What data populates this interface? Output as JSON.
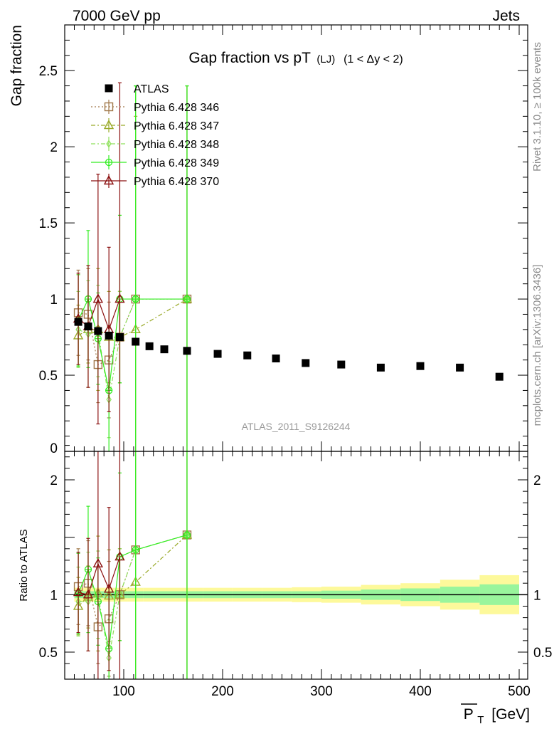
{
  "header": {
    "left": "7000 GeV pp",
    "right": "Jets"
  },
  "side_text": {
    "rivet": "Rivet 3.1.10, ≥ 100k events",
    "mcplots": "mcplots.cern.ch [arXiv:1306.3436]"
  },
  "watermark": "ATLAS_2011_S9126244",
  "colors": {
    "atlas": "#000000",
    "p346": "#a0784a",
    "p347": "#9aaa2a",
    "p348": "#8ee05a",
    "p349": "#33ee22",
    "p370": "#8b1010",
    "band_inner": "#99f59c",
    "band_outer": "#fdf99b"
  },
  "chart_data": [
    {
      "type": "scatter",
      "title": "Gap fraction vs pT",
      "title_sub": "(LJ)",
      "title_cut": "(1 < Δy < 2)",
      "ylabel": "Gap fraction",
      "xlim": [
        40,
        510
      ],
      "ylim": [
        0,
        2.8
      ],
      "yticks": [
        "0",
        "0.5",
        "1",
        "1.5",
        "2",
        "2.5"
      ],
      "legend_position": "top-left",
      "series": [
        {
          "name": "ATLAS",
          "key": "atlas",
          "marker": "square-filled",
          "x": [
            54,
            64,
            74,
            85,
            96,
            112,
            126,
            141,
            164,
            195,
            225,
            254,
            284,
            320,
            360,
            400,
            440,
            480
          ],
          "y": [
            0.85,
            0.82,
            0.79,
            0.76,
            0.75,
            0.72,
            0.69,
            0.67,
            0.66,
            0.64,
            0.63,
            0.61,
            0.58,
            0.57,
            0.55,
            0.56,
            0.55,
            0.49
          ],
          "err": [
            0.01,
            0.01,
            0.01,
            0.01,
            0.01,
            0.01,
            0.01,
            0.01,
            0.01,
            0.01,
            0.01,
            0.01,
            0.01,
            0.01,
            0.01,
            0.01,
            0.01,
            0.01
          ]
        },
        {
          "name": "Pythia 6.428 346",
          "key": "p346",
          "marker": "square-open",
          "line": "dotted",
          "x": [
            54,
            64,
            74,
            85,
            96,
            112,
            164
          ],
          "y": [
            0.91,
            0.9,
            0.57,
            0.6,
            0.75,
            1.0,
            1.0
          ],
          "err": [
            0.28,
            0.3,
            0.25,
            0.38,
            0.3,
            1.4,
            1.4
          ]
        },
        {
          "name": "Pythia 6.428 347",
          "key": "p347",
          "marker": "triangle-open",
          "line": "dash-dot",
          "x": [
            54,
            64,
            74,
            85,
            96,
            112,
            164
          ],
          "y": [
            0.76,
            0.8,
            0.8,
            0.75,
            0.75,
            0.8,
            1.0
          ],
          "err": [
            0.2,
            0.22,
            0.4,
            0.3,
            0.3,
            1.4,
            1.4
          ]
        },
        {
          "name": "Pythia 6.428 348",
          "key": "p348",
          "marker": "diamond-open",
          "line": "dash-dot",
          "x": [
            54,
            64,
            74,
            85,
            96,
            112,
            164
          ],
          "y": [
            0.8,
            0.77,
            0.79,
            0.34,
            0.75,
            1.0,
            1.0
          ],
          "err": [
            0.25,
            0.35,
            0.3,
            0.25,
            0.3,
            1.4,
            1.4
          ]
        },
        {
          "name": "Pythia 6.428 349",
          "key": "p349",
          "marker": "circle-cross",
          "line": "solid",
          "x": [
            54,
            64,
            74,
            85,
            96,
            112,
            164
          ],
          "y": [
            0.86,
            1.0,
            0.74,
            0.4,
            1.0,
            1.0,
            1.0
          ],
          "err": [
            0.3,
            0.45,
            0.3,
            0.42,
            0.55,
            1.4,
            1.4
          ]
        },
        {
          "name": "Pythia 6.428 370",
          "key": "p370",
          "marker": "triangle-open",
          "line": "solid",
          "x": [
            54,
            64,
            74,
            85,
            96
          ],
          "y": [
            0.87,
            0.82,
            1.0,
            0.8,
            1.0
          ],
          "err": [
            0.3,
            0.4,
            0.82,
            0.54,
            1.42
          ]
        }
      ]
    },
    {
      "type": "scatter",
      "ylabel": "Ratio to ATLAS",
      "xlabel": "P",
      "xlabel_sub": "T",
      "xlabel_unit": "[GeV]",
      "xlim": [
        40,
        510
      ],
      "ylim": [
        0.35,
        2.35
      ],
      "xticks": [
        "100",
        "200",
        "300",
        "400",
        "500"
      ],
      "yticks": [
        "0.5",
        "1",
        "2"
      ],
      "band": {
        "x_edges": [
          50,
          60,
          70,
          80,
          90,
          104,
          120,
          132,
          150,
          180,
          210,
          240,
          270,
          300,
          340,
          380,
          420,
          460,
          500
        ],
        "inner": [
          0.03,
          0.03,
          0.03,
          0.03,
          0.03,
          0.03,
          0.03,
          0.03,
          0.03,
          0.03,
          0.03,
          0.03,
          0.03,
          0.035,
          0.045,
          0.055,
          0.07,
          0.09
        ],
        "outer": [
          0.06,
          0.06,
          0.06,
          0.06,
          0.06,
          0.06,
          0.06,
          0.06,
          0.06,
          0.06,
          0.06,
          0.06,
          0.065,
          0.07,
          0.085,
          0.1,
          0.13,
          0.17
        ]
      },
      "series": [
        {
          "name": "Pythia 6.428 346",
          "key": "p346",
          "x": [
            54,
            64,
            74,
            85,
            96,
            112,
            164
          ],
          "y": [
            1.07,
            1.1,
            0.72,
            0.79,
            1.0,
            1.39,
            1.52
          ],
          "err": [
            0.33,
            0.37,
            0.32,
            0.5,
            0.4,
            1.9,
            2.2
          ]
        },
        {
          "name": "Pythia 6.428 347",
          "key": "p347",
          "x": [
            54,
            64,
            74,
            85,
            96,
            112,
            164
          ],
          "y": [
            0.9,
            0.98,
            1.01,
            0.99,
            1.0,
            1.11,
            1.52
          ],
          "err": [
            0.25,
            0.27,
            0.5,
            0.4,
            0.4,
            1.9,
            2.2
          ]
        },
        {
          "name": "Pythia 6.428 348",
          "key": "p348",
          "x": [
            54,
            64,
            74,
            85,
            96,
            112,
            164
          ],
          "y": [
            0.94,
            0.94,
            1.0,
            0.45,
            1.0,
            1.39,
            1.52
          ],
          "err": [
            0.3,
            0.43,
            0.38,
            0.33,
            0.4,
            1.9,
            2.2
          ]
        },
        {
          "name": "Pythia 6.428 349",
          "key": "p349",
          "x": [
            54,
            64,
            74,
            85,
            96,
            112,
            164
          ],
          "y": [
            1.01,
            1.22,
            0.94,
            0.53,
            1.33,
            1.39,
            1.52
          ],
          "err": [
            0.35,
            0.55,
            0.38,
            0.55,
            0.73,
            1.9,
            2.2
          ]
        },
        {
          "name": "Pythia 6.428 370",
          "key": "p370",
          "x": [
            54,
            64,
            74,
            85,
            96
          ],
          "y": [
            1.02,
            1.0,
            1.27,
            1.05,
            1.33
          ],
          "err": [
            0.35,
            0.49,
            1.04,
            0.71,
            1.89
          ]
        }
      ]
    }
  ]
}
